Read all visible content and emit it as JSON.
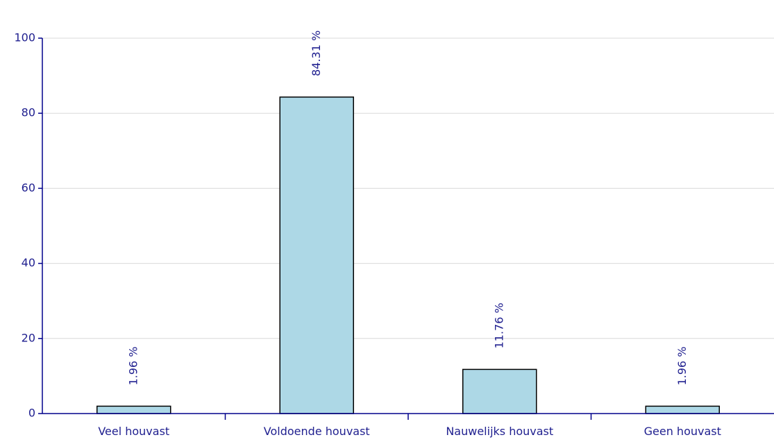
{
  "chart_data": {
    "type": "bar",
    "title": "",
    "xlabel": "",
    "ylabel": "",
    "categories": [
      "Veel houvast",
      "Voldoende houvast",
      "Nauwelijks houvast",
      "Geen houvast"
    ],
    "values": [
      1.96,
      84.31,
      11.76,
      1.96
    ],
    "value_labels": [
      "1.96 %",
      "84.31 %",
      "11.76 %",
      "1.96 %"
    ],
    "ylim": [
      0,
      100
    ],
    "yticks": [
      0,
      20,
      40,
      60,
      80,
      100
    ],
    "grid": true,
    "legend": "none",
    "colors": {
      "bar_fill": "#add8e6",
      "bar_stroke": "#000000",
      "axis": "#00008b",
      "text": "#1f1f8f",
      "grid": "#d9d9d9"
    }
  }
}
